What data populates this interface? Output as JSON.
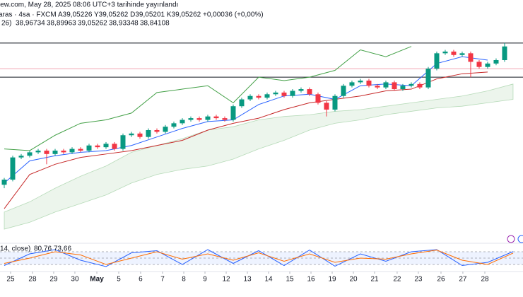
{
  "chart_data": {
    "type": "candlestick",
    "header": {
      "published": "iew.com, May 28, 2025 08:06 UTC+3 tarihinde yayınlandı",
      "symbol": "aras · 4sa · FXCM",
      "ohlc": "A39,05226 Y39,05262 D39,05201 K39,05262 +0,00036 (+0,00%)",
      "ohlc_color": "#089981",
      "ichimoku_label": "26)",
      "ichimoku_values": [
        {
          "text": "38,96734",
          "color": "#2962ff"
        },
        {
          "text": "38,89963",
          "color": "#c62828"
        },
        {
          "text": "39,05262",
          "color": "#43a047"
        },
        {
          "text": "38,93348",
          "color": "#43a047"
        },
        {
          "text": "38,84108",
          "color": "#c62828"
        }
      ]
    },
    "up_color": "#089981",
    "down_color": "#f23645",
    "xlim": [
      -0.5,
      61.17
    ],
    "ylim": [
      37.914,
      39.322
    ],
    "xticks": [
      {
        "value": 0.75,
        "label": "25"
      },
      {
        "value": 3.33,
        "label": "28"
      },
      {
        "value": 5.83,
        "label": "29"
      },
      {
        "value": 8.33,
        "label": "30"
      },
      {
        "value": 10.92,
        "label": "May"
      },
      {
        "value": 13.5,
        "label": "5"
      },
      {
        "value": 16.08,
        "label": "6"
      },
      {
        "value": 18.67,
        "label": "7"
      },
      {
        "value": 21.17,
        "label": "8"
      },
      {
        "value": 23.67,
        "label": "9"
      },
      {
        "value": 26.17,
        "label": "12"
      },
      {
        "value": 28.67,
        "label": "13"
      },
      {
        "value": 31.17,
        "label": "14"
      },
      {
        "value": 33.67,
        "label": "15"
      },
      {
        "value": 36.17,
        "label": "16"
      },
      {
        "value": 38.67,
        "label": "19"
      },
      {
        "value": 41.17,
        "label": "20"
      },
      {
        "value": 43.67,
        "label": "21"
      },
      {
        "value": 46.33,
        "label": "22"
      },
      {
        "value": 48.83,
        "label": "23"
      },
      {
        "value": 51.5,
        "label": "26"
      },
      {
        "value": 54.08,
        "label": "27"
      },
      {
        "value": 56.67,
        "label": "28"
      }
    ],
    "x": [
      0,
      1,
      2,
      3,
      4,
      5,
      6,
      7,
      8,
      9,
      10,
      11,
      12,
      13,
      14,
      15,
      16,
      17,
      18,
      19,
      20,
      21,
      22,
      23,
      24,
      25,
      26,
      27,
      28,
      29,
      30,
      31,
      32,
      33,
      34,
      35,
      36,
      37,
      38,
      39,
      40,
      41,
      42,
      43,
      44,
      45,
      46,
      47,
      48,
      49,
      50,
      51,
      52,
      53,
      54,
      55,
      56,
      57,
      58,
      59
    ],
    "open": [
      38.24,
      38.27,
      38.4,
      38.41,
      38.43,
      38.44,
      38.42,
      38.44,
      38.43,
      38.45,
      38.44,
      38.47,
      38.46,
      38.48,
      38.45,
      38.53,
      38.54,
      38.52,
      38.56,
      38.55,
      38.58,
      38.6,
      38.62,
      38.63,
      38.62,
      38.64,
      38.63,
      38.62,
      38.7,
      38.74,
      38.76,
      38.75,
      38.77,
      38.78,
      38.76,
      38.79,
      38.8,
      38.77,
      38.72,
      38.68,
      38.76,
      38.82,
      38.84,
      38.85,
      38.82,
      38.81,
      38.84,
      38.8,
      38.82,
      38.83,
      38.81,
      38.92,
      39.01,
      39.02,
      39.0,
      39.01,
      38.96,
      38.93,
      38.95,
      38.97
    ],
    "high": [
      38.28,
      38.41,
      38.42,
      38.44,
      38.45,
      38.45,
      38.45,
      38.45,
      38.46,
      38.46,
      38.48,
      38.48,
      38.49,
      38.49,
      38.54,
      38.55,
      38.55,
      38.57,
      38.57,
      38.59,
      38.61,
      38.63,
      38.64,
      38.64,
      38.65,
      38.65,
      38.64,
      38.71,
      38.75,
      38.77,
      38.77,
      38.78,
      38.79,
      38.79,
      38.8,
      38.81,
      38.81,
      38.78,
      38.73,
      38.77,
      38.83,
      38.85,
      38.86,
      38.86,
      38.83,
      38.85,
      38.85,
      38.83,
      38.84,
      38.84,
      38.93,
      39.02,
      39.03,
      39.03,
      39.02,
      39.02,
      38.97,
      38.96,
      38.98,
      39.07
    ],
    "low": [
      38.22,
      38.26,
      38.39,
      38.4,
      38.42,
      38.36,
      38.41,
      38.42,
      38.42,
      38.43,
      38.43,
      38.45,
      38.45,
      38.44,
      38.44,
      38.52,
      38.51,
      38.51,
      38.54,
      38.54,
      38.57,
      38.59,
      38.61,
      38.61,
      38.61,
      38.62,
      38.61,
      38.61,
      38.69,
      38.73,
      38.74,
      38.74,
      38.76,
      38.75,
      38.75,
      38.78,
      38.76,
      38.71,
      38.64,
      38.67,
      38.75,
      38.81,
      38.83,
      38.81,
      38.8,
      38.8,
      38.79,
      38.79,
      38.81,
      38.8,
      38.8,
      38.91,
      39.0,
      38.99,
      38.99,
      38.87,
      38.92,
      38.92,
      38.94,
      38.96
    ],
    "close": [
      38.27,
      38.4,
      38.41,
      38.43,
      38.44,
      38.42,
      38.44,
      38.43,
      38.45,
      38.44,
      38.47,
      38.46,
      38.48,
      38.45,
      38.53,
      38.54,
      38.52,
      38.56,
      38.55,
      38.58,
      38.6,
      38.62,
      38.63,
      38.62,
      38.64,
      38.63,
      38.62,
      38.7,
      38.74,
      38.76,
      38.75,
      38.77,
      38.78,
      38.76,
      38.79,
      38.8,
      38.77,
      38.72,
      38.68,
      38.76,
      38.82,
      38.84,
      38.85,
      38.82,
      38.81,
      38.84,
      38.8,
      38.82,
      38.83,
      38.81,
      38.92,
      39.01,
      39.02,
      39.0,
      39.01,
      38.96,
      38.93,
      38.95,
      38.97,
      39.05
    ],
    "overlay_x": [
      0,
      3,
      6,
      9,
      12,
      15,
      18,
      21,
      24,
      27,
      30,
      33,
      36,
      39,
      42,
      45,
      48,
      51,
      54,
      57,
      60
    ],
    "cloud": {
      "color": "#43a047",
      "span_a": [
        38.08,
        38.14,
        38.22,
        38.29,
        38.35,
        38.43,
        38.47,
        38.51,
        38.56,
        38.58,
        38.62,
        38.64,
        38.65,
        38.67,
        38.68,
        38.7,
        38.72,
        38.74,
        38.76,
        38.79,
        38.83
      ],
      "span_b": [
        37.98,
        38.02,
        38.08,
        38.13,
        38.18,
        38.25,
        38.3,
        38.33,
        38.35,
        38.39,
        38.45,
        38.5,
        38.56,
        38.6,
        38.62,
        38.65,
        38.67,
        38.69,
        38.7,
        38.72,
        38.74
      ]
    },
    "lines": [
      {
        "color": "#2962ff",
        "values": [
          38.25,
          38.38,
          38.41,
          38.43,
          38.44,
          38.47,
          38.52,
          38.57,
          38.61,
          38.62,
          38.71,
          38.76,
          38.77,
          38.74,
          38.82,
          38.83,
          38.82,
          38.95,
          38.99,
          38.97,
          null
        ]
      },
      {
        "color": "#c62828",
        "values": [
          38.1,
          38.3,
          38.36,
          38.4,
          38.42,
          38.44,
          38.47,
          38.5,
          38.56,
          38.6,
          38.63,
          38.68,
          38.72,
          38.74,
          38.76,
          38.79,
          38.8,
          38.86,
          38.89,
          38.9,
          null
        ]
      },
      {
        "color": "#43a047",
        "values": [
          38.45,
          38.44,
          38.53,
          38.6,
          38.62,
          38.66,
          38.78,
          38.8,
          38.82,
          38.72,
          38.87,
          38.85,
          38.87,
          38.91,
          39.03,
          38.99,
          39.05,
          null,
          null,
          null,
          null
        ]
      }
    ],
    "hlines": [
      {
        "value": 39.07,
        "color": "#131722"
      },
      {
        "value": 38.87,
        "color": "#131722"
      },
      {
        "value": 38.92,
        "color": "#f3a6b4"
      }
    ],
    "stoch": {
      "label": "14, close)",
      "ylim": [
        0,
        100
      ],
      "levels": [
        80,
        50,
        20
      ],
      "band_color": "#2962ff",
      "series": [
        {
          "color": "#2962ff",
          "values": [
            15,
            70,
            90,
            40,
            10,
            75,
            85,
            20,
            90,
            25,
            85,
            15,
            88,
            12,
            70,
            35,
            80,
            90,
            15,
            30,
            80.76
          ],
          "value_labels": [
            null,
            null,
            null,
            null,
            null,
            null,
            null,
            null,
            null,
            null,
            null,
            null,
            null,
            null,
            null,
            null,
            null,
            null,
            null,
            null,
            "80,76"
          ]
        },
        {
          "color": "#ff6d00",
          "values": [
            25,
            50,
            80,
            65,
            20,
            50,
            80,
            45,
            70,
            40,
            75,
            35,
            70,
            30,
            50,
            45,
            70,
            88,
            40,
            20,
            73.66
          ],
          "value_labels": [
            null,
            null,
            null,
            null,
            null,
            null,
            null,
            null,
            null,
            null,
            null,
            null,
            null,
            null,
            null,
            null,
            null,
            null,
            null,
            null,
            "73,66"
          ]
        }
      ]
    }
  }
}
